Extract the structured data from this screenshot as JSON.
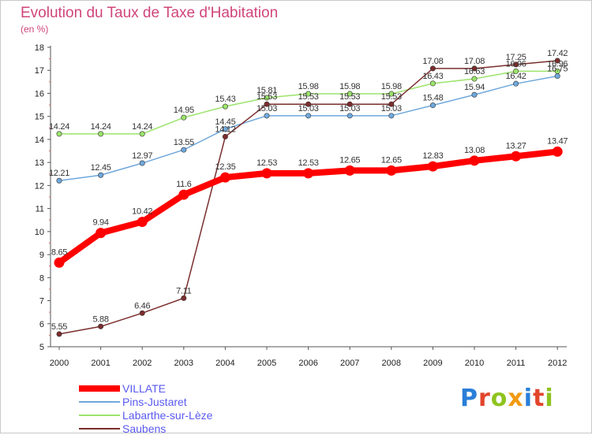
{
  "header": {
    "title": "Evolution du Taux de Taxe d'Habitation",
    "subtitle": "(en %)"
  },
  "colors": {
    "title": "#d0457a",
    "legend_text": "#5a5af0"
  },
  "logo": {
    "letters": [
      "P",
      "r",
      "o",
      "x",
      "i",
      "t",
      "i"
    ],
    "colors": [
      "#2a7fd8",
      "#e2462c",
      "#8fc31f",
      "#f29a10",
      "#2a7fd8",
      "#e2462c",
      "#8fc31f"
    ]
  },
  "chart_data": {
    "type": "line",
    "categories": [
      "2000",
      "2001",
      "2002",
      "2003",
      "2004",
      "2005",
      "2006",
      "2007",
      "2008",
      "2009",
      "2010",
      "2011",
      "2012"
    ],
    "y_ticks": [
      "5",
      "6",
      "7",
      "8",
      "9",
      "10",
      "11",
      "12",
      "13",
      "14",
      "15",
      "16",
      "17",
      "18"
    ],
    "ylim": [
      5,
      18
    ],
    "grid": false,
    "legend_position": "bottom-left",
    "series": [
      {
        "name": "VILLATE",
        "color": "#ff0000",
        "values": [
          8.65,
          9.94,
          10.42,
          11.6,
          12.35,
          12.53,
          12.53,
          12.65,
          12.65,
          12.83,
          13.08,
          13.27,
          13.47
        ],
        "labels": [
          "8.65",
          "9.94",
          "10.42",
          "11.6",
          "12.35",
          "12.53",
          "12.53",
          "12.65",
          "12.65",
          "12.83",
          "13.08",
          "13.27",
          "13.47"
        ]
      },
      {
        "name": "Pins-Justaret",
        "color": "#6fa8dc",
        "values": [
          12.21,
          12.45,
          12.97,
          13.55,
          14.45,
          15.03,
          15.03,
          15.03,
          15.03,
          15.48,
          15.94,
          16.42,
          16.75
        ],
        "labels": [
          "12.21",
          "12.45",
          "12.97",
          "13.55",
          "14.45",
          "15.03",
          "15.03",
          "15.03",
          "15.03",
          "15.48",
          "15.94",
          "16.42",
          "16.75"
        ]
      },
      {
        "name": "Labarthe-sur-Lèze",
        "color": "#9be36b",
        "values": [
          14.24,
          14.24,
          14.24,
          14.95,
          15.43,
          15.81,
          15.98,
          15.98,
          15.98,
          16.43,
          16.63,
          16.96,
          16.96
        ],
        "labels": [
          "14.24",
          "14.24",
          "14.24",
          "14.95",
          "15.43",
          "15.81",
          "15.98",
          "15.98",
          "15.98",
          "16.43",
          "16.63",
          "16.96",
          "16.96"
        ]
      },
      {
        "name": "Saubens",
        "color": "#7b2d2d",
        "values": [
          5.55,
          5.88,
          6.46,
          7.11,
          14.12,
          15.53,
          15.53,
          15.53,
          15.53,
          17.08,
          17.08,
          17.25,
          17.42
        ],
        "labels": [
          "5.55",
          "5.88",
          "6.46",
          "7.11",
          "14.12",
          "15.53",
          "15.53",
          "15.53",
          "15.53",
          "17.08",
          "17.08",
          "17.25",
          "17.42"
        ]
      }
    ]
  }
}
